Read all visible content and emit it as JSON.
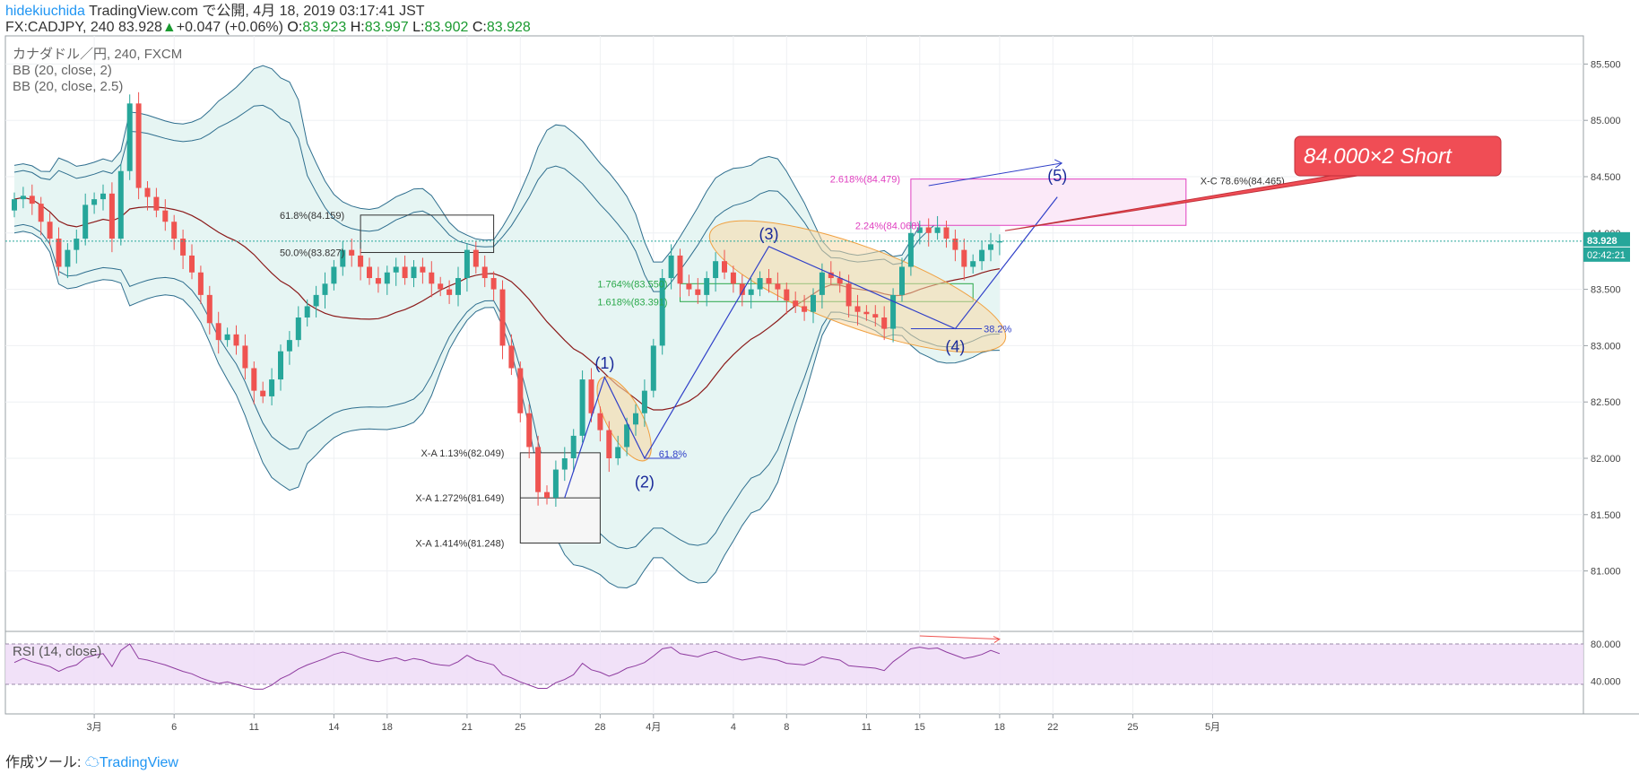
{
  "header": {
    "author": "hidekiuchida",
    "published": "TradingView.com で公開, 4月 18, 2019 03:17:41 JST",
    "symbol_line": "FX:CADJPY, 240  83.928",
    "change_arrow": "▲",
    "change": "+0.047 (+0.06%)",
    "o_label": "O:",
    "o_value": "83.923",
    "h_label": "H:",
    "h_value": "83.997",
    "l_label": "L:",
    "l_value": "83.902",
    "c_label": "C:",
    "c_value": "83.928"
  },
  "legend": {
    "series": "カナダドル／円, 240, FXCM",
    "bb1": "BB (20, close, 2)",
    "bb2": "BB (20, close, 2.5)"
  },
  "footer": {
    "prefix": "作成ツール: ",
    "brand": "TradingView"
  },
  "colors": {
    "bull": "#26a69a",
    "bear": "#ef5350",
    "bb_line": "#2e6e8e",
    "basis": "#8b1a1a",
    "bb_fill": "#e6f5f3",
    "rsi_line": "#8e3b9f",
    "rsi_band": "#eedcf7",
    "wave": "#3040c8",
    "ellipse_fill": "#f7d9a6",
    "ellipse_stroke": "#f0a040",
    "fib_pink": "#e040c0",
    "fib_green": "#2aa84a",
    "callout": "#f04d55"
  },
  "chart_data": {
    "type": "candlestick",
    "y_axis": {
      "min": 80.75,
      "max": 85.75,
      "ticks": [
        "85.500",
        "85.000",
        "84.500",
        "84.000",
        "83.500",
        "83.000",
        "82.500",
        "82.000",
        "81.500",
        "81.000"
      ]
    },
    "current_price": "83.928",
    "countdown": "02:42:21",
    "x_ticks": [
      {
        "label": "3月",
        "i": 9
      },
      {
        "label": "6",
        "i": 18
      },
      {
        "label": "11",
        "i": 27
      },
      {
        "label": "14",
        "i": 36
      },
      {
        "label": "18",
        "i": 42
      },
      {
        "label": "21",
        "i": 51
      },
      {
        "label": "25",
        "i": 57
      },
      {
        "label": "28",
        "i": 66
      },
      {
        "label": "4月",
        "i": 72
      },
      {
        "label": "4",
        "i": 81
      },
      {
        "label": "8",
        "i": 87
      },
      {
        "label": "11",
        "i": 96
      },
      {
        "label": "15",
        "i": 102
      },
      {
        "label": "18",
        "i": 111
      },
      {
        "label": "22",
        "i": 117
      },
      {
        "label": "25",
        "i": 126
      },
      {
        "label": "5月",
        "i": 135
      }
    ],
    "close": [
      84.3,
      84.33,
      84.26,
      84.1,
      83.95,
      83.7,
      83.85,
      83.95,
      84.25,
      84.3,
      84.35,
      83.95,
      84.55,
      85.15,
      84.4,
      84.32,
      84.2,
      84.1,
      83.95,
      83.8,
      83.65,
      83.45,
      83.2,
      83.05,
      83.1,
      83.0,
      82.8,
      82.6,
      82.55,
      82.7,
      82.95,
      83.05,
      83.25,
      83.35,
      83.45,
      83.55,
      83.7,
      83.85,
      83.8,
      83.7,
      83.6,
      83.55,
      83.65,
      83.7,
      83.6,
      83.7,
      83.65,
      83.55,
      83.5,
      83.45,
      83.6,
      83.85,
      83.7,
      83.6,
      83.5,
      83.0,
      82.8,
      82.4,
      82.1,
      81.7,
      81.65,
      81.9,
      82.0,
      82.2,
      82.7,
      82.4,
      82.25,
      82.0,
      82.1,
      82.3,
      82.4,
      82.6,
      83.0,
      83.6,
      83.8,
      83.55,
      83.5,
      83.45,
      83.6,
      83.75,
      83.65,
      83.55,
      83.45,
      83.5,
      83.6,
      83.55,
      83.5,
      83.4,
      83.35,
      83.3,
      83.45,
      83.65,
      83.6,
      83.55,
      83.35,
      83.3,
      83.28,
      83.25,
      83.15,
      83.45,
      83.7,
      84.0,
      84.05,
      84.0,
      84.05,
      83.95,
      83.85,
      83.7,
      83.75,
      83.85,
      83.9,
      83.928
    ],
    "open": [
      84.2,
      84.3,
      84.33,
      84.26,
      84.1,
      83.95,
      83.7,
      83.85,
      83.95,
      84.25,
      84.3,
      84.35,
      83.95,
      84.55,
      85.15,
      84.4,
      84.32,
      84.2,
      84.1,
      83.95,
      83.8,
      83.65,
      83.45,
      83.2,
      83.05,
      83.1,
      83.0,
      82.8,
      82.6,
      82.55,
      82.7,
      82.95,
      83.05,
      83.25,
      83.35,
      83.45,
      83.55,
      83.7,
      83.85,
      83.8,
      83.7,
      83.6,
      83.55,
      83.65,
      83.7,
      83.6,
      83.7,
      83.65,
      83.55,
      83.5,
      83.45,
      83.6,
      83.85,
      83.7,
      83.6,
      83.5,
      83.0,
      82.8,
      82.4,
      82.1,
      81.7,
      81.65,
      81.9,
      82.0,
      82.2,
      82.7,
      82.4,
      82.25,
      82.0,
      82.1,
      82.3,
      82.4,
      82.6,
      83.0,
      83.6,
      83.8,
      83.55,
      83.5,
      83.45,
      83.6,
      83.75,
      83.65,
      83.55,
      83.45,
      83.5,
      83.6,
      83.55,
      83.5,
      83.4,
      83.35,
      83.3,
      83.45,
      83.65,
      83.6,
      83.55,
      83.35,
      83.3,
      83.28,
      83.25,
      83.15,
      83.45,
      83.7,
      84.0,
      84.05,
      84.0,
      84.05,
      83.95,
      83.85,
      83.7,
      83.75,
      83.85,
      83.923
    ],
    "rsi": [
      57,
      62,
      58,
      55,
      52,
      46,
      51,
      54,
      63,
      66,
      68,
      52,
      72,
      80,
      62,
      60,
      57,
      54,
      50,
      46,
      43,
      38,
      34,
      31,
      33,
      30,
      27,
      24,
      24,
      29,
      37,
      42,
      49,
      54,
      58,
      62,
      67,
      70,
      67,
      63,
      60,
      58,
      61,
      63,
      59,
      62,
      60,
      56,
      54,
      53,
      58,
      66,
      60,
      57,
      54,
      42,
      38,
      33,
      29,
      25,
      25,
      32,
      36,
      42,
      56,
      48,
      45,
      40,
      44,
      50,
      53,
      57,
      65,
      74,
      76,
      68,
      66,
      64,
      68,
      71,
      67,
      63,
      60,
      62,
      64,
      62,
      60,
      56,
      55,
      54,
      58,
      64,
      62,
      60,
      53,
      52,
      51,
      50,
      47,
      58,
      66,
      74,
      76,
      74,
      75,
      70,
      66,
      62,
      64,
      67,
      72,
      68
    ],
    "rsi_axis": [
      "80.000",
      "40.000"
    ],
    "annotations": {
      "callout": "84.000×2   Short",
      "waves": [
        "(1)",
        "(2)",
        "(3)",
        "(4)",
        "(5)"
      ],
      "fib_top_1": "61.8%(84.159)",
      "fib_top_2": "50.0%(83.827)",
      "xa_1": "X-A   1.13%(82.049)",
      "xa_2": "X-A   1.272%(81.649)",
      "xa_3": "X-A   1.414%(81.248)",
      "ret_2": "61.8%",
      "ext_1": "1.764%(83.550)",
      "ext_2": "1.618%(83.391)",
      "ret_4": "38.2%",
      "ext_3": "2.618%(84.479)",
      "ext_4": "2.24%(84.068)",
      "xc": "X-C   78.6%(84.465)"
    },
    "rsi_label": "RSI (14, close)"
  }
}
